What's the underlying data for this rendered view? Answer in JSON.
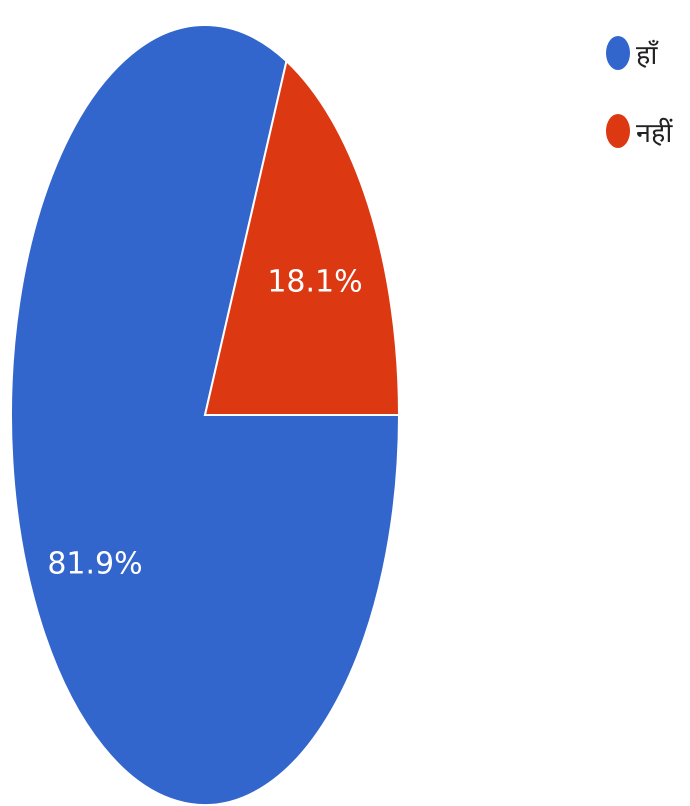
{
  "chart_data": {
    "type": "pie",
    "categories": [
      "हाँ",
      "नहीं"
    ],
    "values": [
      81.9,
      18.1
    ],
    "data_labels": [
      "81.9%",
      "18.1%"
    ],
    "colors": [
      "#3366cc",
      "#dc3912"
    ],
    "title": "",
    "legend_position": "top-right"
  }
}
